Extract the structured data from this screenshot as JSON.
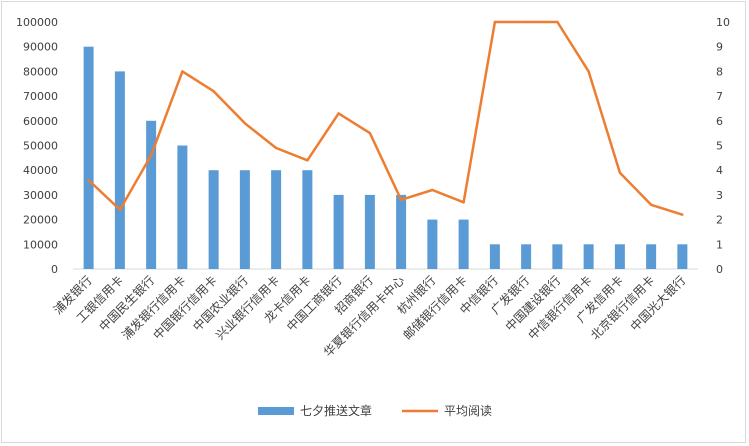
{
  "chart_data": {
    "type": "bar",
    "categories": [
      "浦发银行",
      "工银信用卡",
      "中国民生银行",
      "浦发银行信用卡",
      "中国银行信用卡",
      "中国农业银行",
      "兴业银行信用卡",
      "龙卡信用卡",
      "中国工商银行",
      "招商银行",
      "华夏银行信用卡中心",
      "杭州银行",
      "邮储银行信用卡",
      "中信银行",
      "广发银行",
      "中国建设银行",
      "中信银行信用卡",
      "广发信用卡",
      "北京银行信用卡",
      "中国光大银行"
    ],
    "series": [
      {
        "name": "七夕推送文章",
        "type": "bar",
        "axis": "left",
        "color": "#5b9bd5",
        "values": [
          90000,
          80000,
          60000,
          50000,
          40000,
          40000,
          40000,
          40000,
          30000,
          30000,
          30000,
          20000,
          20000,
          10000,
          10000,
          10000,
          10000,
          10000,
          10000,
          10000
        ]
      },
      {
        "name": "平均阅读",
        "type": "line",
        "axis": "right",
        "color": "#ed7d31",
        "values": [
          3.6,
          2.4,
          4.6,
          8.0,
          7.2,
          5.9,
          4.9,
          4.4,
          6.3,
          5.5,
          2.8,
          3.2,
          2.7,
          10.0,
          10.0,
          10.0,
          8.0,
          3.9,
          2.6,
          2.2
        ]
      }
    ],
    "y_left": {
      "min": 0,
      "max": 100000,
      "step": 10000,
      "ticks": [
        "0",
        "10000",
        "20000",
        "30000",
        "40000",
        "50000",
        "60000",
        "70000",
        "80000",
        "90000",
        "100000"
      ]
    },
    "y_right": {
      "min": 0,
      "max": 10,
      "step": 1,
      "ticks": [
        "0",
        "1",
        "2",
        "3",
        "4",
        "5",
        "6",
        "7",
        "8",
        "9",
        "10"
      ]
    },
    "legend_position": "bottom",
    "grid": false
  }
}
